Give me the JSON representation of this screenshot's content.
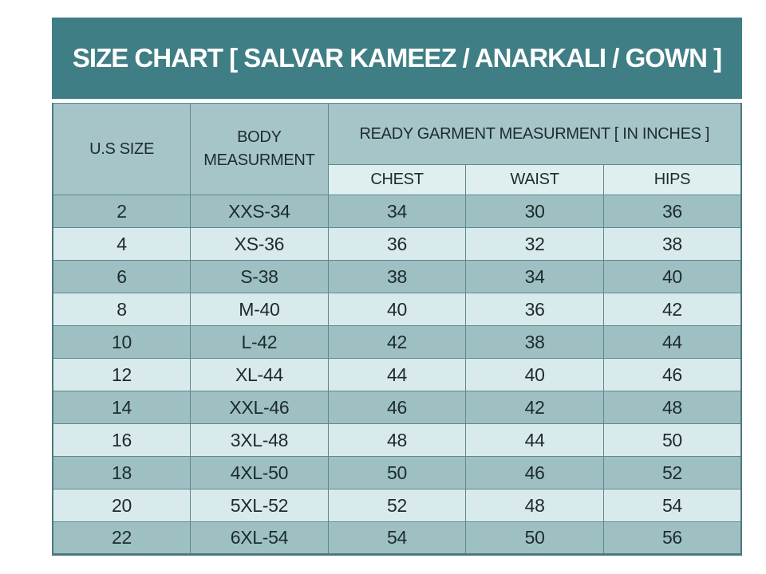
{
  "title": "SIZE CHART [ SALVAR KAMEEZ / ANARKALI / GOWN ]",
  "table": {
    "header": {
      "us_size": "U.S SIZE",
      "body_measurement": "BODY MEASURMENT",
      "ready_garment": "READY GARMENT MEASURMENT [ IN INCHES ]",
      "sub_columns": [
        "CHEST",
        "WAIST",
        "HIPS"
      ]
    },
    "rows": [
      [
        "2",
        "XXS-34",
        "34",
        "30",
        "36"
      ],
      [
        "4",
        "XS-36",
        "36",
        "32",
        "38"
      ],
      [
        "6",
        "S-38",
        "38",
        "34",
        "40"
      ],
      [
        "8",
        "M-40",
        "40",
        "36",
        "42"
      ],
      [
        "10",
        "L-42",
        "42",
        "38",
        "44"
      ],
      [
        "12",
        "XL-44",
        "44",
        "40",
        "46"
      ],
      [
        "14",
        "XXL-46",
        "46",
        "42",
        "48"
      ],
      [
        "16",
        "3XL-48",
        "48",
        "44",
        "50"
      ],
      [
        "18",
        "4XL-50",
        "50",
        "46",
        "52"
      ],
      [
        "20",
        "5XL-52",
        "52",
        "48",
        "54"
      ],
      [
        "22",
        "6XL-54",
        "54",
        "50",
        "56"
      ]
    ]
  },
  "chart_data": {
    "type": "table",
    "title": "SIZE CHART [ SALVAR KAMEEZ / ANARKALI / GOWN ]",
    "group_header": "READY GARMENT MEASURMENT [ IN INCHES ]",
    "columns": [
      "U.S SIZE",
      "BODY MEASURMENT",
      "CHEST",
      "WAIST",
      "HIPS"
    ],
    "rows": [
      [
        2,
        "XXS-34",
        34,
        30,
        36
      ],
      [
        4,
        "XS-36",
        36,
        32,
        38
      ],
      [
        6,
        "S-38",
        38,
        34,
        40
      ],
      [
        8,
        "M-40",
        40,
        36,
        42
      ],
      [
        10,
        "L-42",
        42,
        38,
        44
      ],
      [
        12,
        "XL-44",
        44,
        40,
        46
      ],
      [
        14,
        "XXL-46",
        46,
        42,
        48
      ],
      [
        16,
        "3XL-48",
        48,
        44,
        50
      ],
      [
        18,
        "4XL-50",
        50,
        46,
        52
      ],
      [
        20,
        "5XL-52",
        52,
        48,
        54
      ],
      [
        22,
        "6XL-54",
        54,
        50,
        56
      ]
    ],
    "units": "inches"
  },
  "colors": {
    "title_bg": "#3f7e84",
    "title_text": "#ffffff",
    "header_bg": "#a6c5c9",
    "subheader_bg": "#dfeeef",
    "row_dark": "#9ec0c3",
    "row_light": "#d9eaec",
    "border": "#5d898e",
    "outer_border": "#4e787d",
    "text": "#1d2b2c"
  }
}
